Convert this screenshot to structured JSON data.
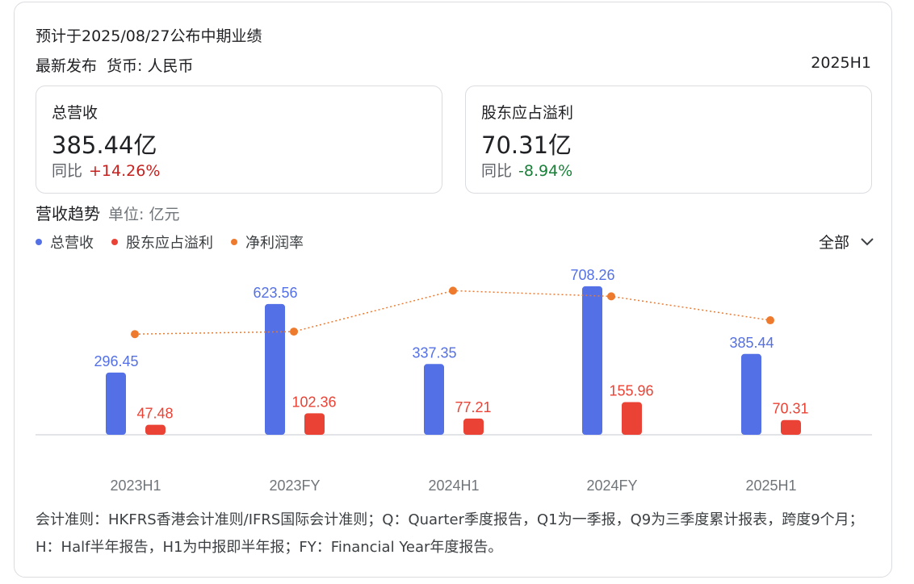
{
  "header": {
    "release_note": "预计于2025/08/27公布中期业绩",
    "latest": "最新发布",
    "currency": "货币: 人民币",
    "period": "2025H1"
  },
  "metrics": [
    {
      "label": "总营收",
      "value": "385.44亿",
      "yoy_label": "同比",
      "yoy": "+14.26%",
      "direction": "up"
    },
    {
      "label": "股东应占溢利",
      "value": "70.31亿",
      "yoy_label": "同比",
      "yoy": "-8.94%",
      "direction": "down"
    }
  ],
  "trend": {
    "title": "营收趋势",
    "unit": "单位: 亿元",
    "range_selector": "全部"
  },
  "colors": {
    "revenue": "#5470e6",
    "profit": "#ea4335",
    "margin": "#ee7a2d",
    "up": "#c5221f",
    "down": "#188038"
  },
  "chart_data": {
    "type": "bar",
    "categories": [
      "2023H1",
      "2023FY",
      "2024H1",
      "2024FY",
      "2025H1"
    ],
    "series": [
      {
        "name": "总营收",
        "type": "bar",
        "values": [
          296.45,
          623.56,
          337.35,
          708.26,
          385.44
        ]
      },
      {
        "name": "股东应占溢利",
        "type": "bar",
        "values": [
          47.48,
          102.36,
          77.21,
          155.96,
          70.31
        ]
      },
      {
        "name": "净利润率",
        "type": "line",
        "values": [
          16.0,
          16.4,
          22.9,
          22.0,
          18.2
        ]
      }
    ],
    "legend": "top-left",
    "grid": false
  },
  "footnote": "会计准则：HKFRS香港会计准则/IFRS国际会计准则；Q：Quarter季度报告，Q1为一季报，Q9为三季度累计报表，跨度9个月；H：Half半年报告，H1为中报即半年报；FY：Financial Year年度报告。"
}
